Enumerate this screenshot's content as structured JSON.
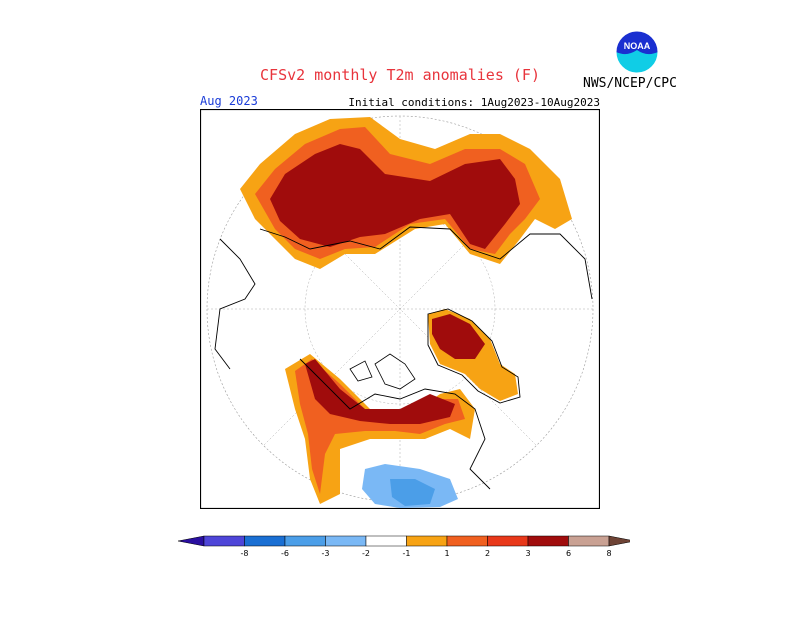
{
  "header": {
    "title": "CFSv2 monthly T2m anomalies (F)",
    "agency": "NWS/NCEP/CPC",
    "logo_text": "NOAA",
    "valid_month": "Aug 2023",
    "initial_conditions": "Initial conditions: 1Aug2023-10Aug2023"
  },
  "colorbar": {
    "labels": [
      "-8",
      "-6",
      "-3",
      "-2",
      "-1",
      "1",
      "2",
      "3",
      "6",
      "8"
    ],
    "colors": [
      "#2a0fa0",
      "#4e45d8",
      "#1a6fd3",
      "#4b9ee8",
      "#7ab8f5",
      "#ffffff",
      "#f7a314",
      "#f06020",
      "#e8381a",
      "#a00c0c",
      "#c9a193",
      "#6e4335"
    ]
  }
}
